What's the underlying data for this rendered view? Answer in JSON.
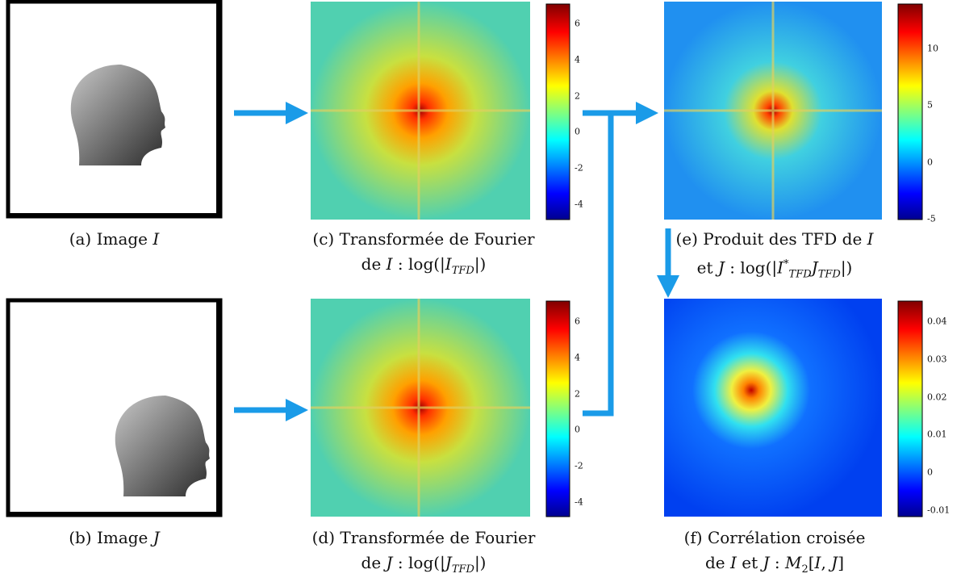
{
  "panels": {
    "a": {
      "caption": [
        "(a) Image ",
        "I"
      ]
    },
    "b": {
      "caption": [
        "(b) Image ",
        "J"
      ]
    },
    "c": {
      "caption_line1": "(c) Transformée de Fourier",
      "caption_line2": [
        "de ",
        "I",
        " : log(|",
        "I",
        "TFD",
        "|)"
      ],
      "colorbar_ticks": [
        "6",
        "4",
        "2",
        "0",
        "-2",
        "-4"
      ]
    },
    "d": {
      "caption_line1": "(d) Transformée de Fourier",
      "caption_line2": [
        "de ",
        "J",
        " : log(|",
        "J",
        "TFD",
        "|)"
      ],
      "colorbar_ticks": [
        "6",
        "4",
        "2",
        "0",
        "-2",
        "-4"
      ]
    },
    "e": {
      "caption_line1": [
        "(e) Produit des TFD de ",
        "I"
      ],
      "caption_line2": [
        "et ",
        "J",
        " : log(|",
        "I",
        "*",
        "TFD",
        "J",
        "TFD",
        "|)"
      ],
      "colorbar_ticks": [
        "10",
        "5",
        "0",
        "-5"
      ]
    },
    "f": {
      "caption_line1": "(f) Corrélation croisée",
      "caption_line2": [
        "de ",
        "I",
        " et ",
        "J",
        " : ",
        "M",
        "2",
        "[",
        "I",
        ", ",
        "J",
        "]"
      ],
      "colorbar_ticks": [
        "0.04",
        "0.03",
        "0.02",
        "0.01",
        "0",
        "-0.01"
      ]
    }
  }
}
